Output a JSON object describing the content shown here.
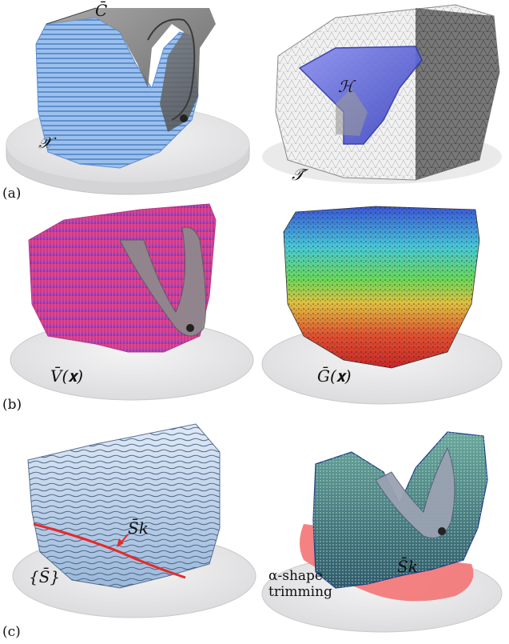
{
  "figure": {
    "rows": [
      {
        "tag": "(a)",
        "left": {
          "labels": {
            "top": "C̄",
            "side": "𝒳"
          }
        },
        "right": {
          "labels": {
            "inner": "ℋ",
            "side": "𝒯̄"
          }
        }
      },
      {
        "tag": "(b)",
        "left": {
          "labels": {
            "func": "V̄(𝐱)"
          }
        },
        "right": {
          "labels": {
            "func": "Ḡ(𝐱)"
          }
        }
      },
      {
        "tag": "(c)",
        "left": {
          "labels": {
            "layer": "S̄k",
            "set": "{S̄}"
          }
        },
        "right": {
          "labels": {
            "layer": "S̄k",
            "alpha_line1": "α-shape",
            "alpha_line2": "trimming"
          }
        }
      }
    ],
    "colors": {
      "turntable": "#e9e9ea",
      "blue_layers": "#8fb6e6",
      "grey_mesh": "#8a8a8a",
      "hull_blue": "#5a63d8",
      "magenta": "#c8327a",
      "purple": "#7e3cc4",
      "field_red": "#d43030",
      "field_green": "#4fd06a",
      "field_blue": "#3a55d8",
      "teal": "#4f8f85",
      "salmon": "#f46f6f"
    }
  }
}
